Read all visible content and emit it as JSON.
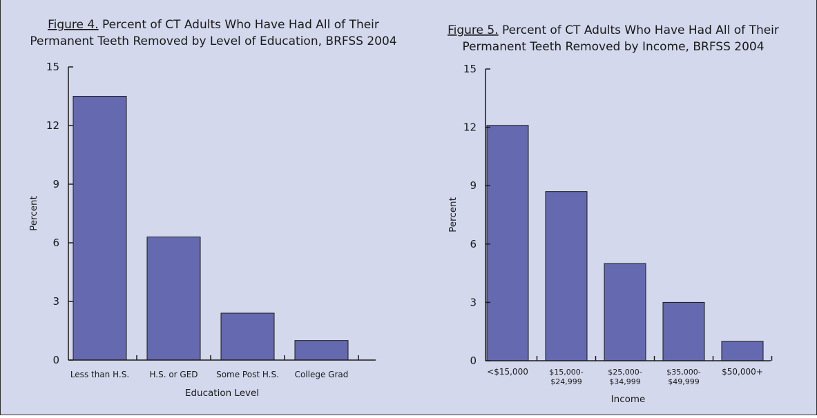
{
  "chart_data": [
    {
      "type": "bar",
      "title_prefix": "Figure 4.",
      "title_rest": " Percent of CT Adults Who Have Had All of Their",
      "title_line2": "Permanent Teeth Removed by Level of Education, BRFSS 2004",
      "categories": [
        [
          "Less than H.S."
        ],
        [
          "H.S. or GED"
        ],
        [
          "Some Post H.S."
        ],
        [
          "College Grad"
        ]
      ],
      "values": [
        13.5,
        6.3,
        2.4,
        1.0
      ],
      "xlabel": "Education Level",
      "ylabel": "Percent",
      "ylim": [
        0,
        15
      ],
      "yticks": [
        0,
        3,
        6,
        9,
        12,
        15
      ],
      "grid": false,
      "bar_color": "#6469b0"
    },
    {
      "type": "bar",
      "title_prefix": "Figure 5.",
      "title_rest": " Percent of CT Adults Who Have Had All of Their",
      "title_line2": "Permanent Teeth Removed by Income, BRFSS 2004",
      "categories": [
        [
          "<$15,000"
        ],
        [
          "$15,000-",
          "$24,999"
        ],
        [
          "$25,000-",
          "$34,999"
        ],
        [
          "$35,000-",
          "$49,999"
        ],
        [
          "$50,000+"
        ]
      ],
      "values": [
        12.1,
        8.7,
        5.0,
        3.0,
        1.0
      ],
      "xlabel": "Income",
      "ylabel": "Percent",
      "ylim": [
        0,
        15
      ],
      "yticks": [
        0,
        3,
        6,
        9,
        12,
        15
      ],
      "grid": false,
      "bar_color": "#6469b0"
    }
  ]
}
